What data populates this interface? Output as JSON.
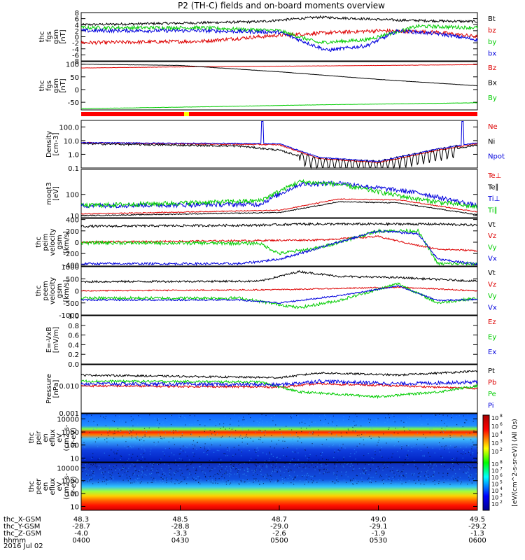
{
  "title": "P2 (TH-C) fields and on-board moments overview",
  "date_label": "2016 Jul 02",
  "colors": {
    "black": "#000000",
    "red": "#dd0000",
    "green": "#00cc00",
    "blue": "#0000dd",
    "yellow": "#ffff00"
  },
  "chart_data": {
    "type": "line",
    "x_range_hhmm": [
      "0400",
      "0600"
    ],
    "x_ticks": {
      "rows": [
        {
          "label": "thc_X-GSM",
          "values": [
            "48.3",
            "48.5",
            "48.7",
            "49.0",
            "49.5"
          ]
        },
        {
          "label": "thc_Y-GSM",
          "values": [
            "-28.7",
            "-28.8",
            "-29.0",
            "-29.1",
            "-29.2"
          ]
        },
        {
          "label": "thc_Z-GSM",
          "values": [
            "-4.0",
            "-3.3",
            "-2.6",
            "-1.9",
            "-1.3"
          ]
        },
        {
          "label": "hhmm",
          "values": [
            "0400",
            "0430",
            "0500",
            "0530",
            "0600"
          ]
        }
      ]
    },
    "panels": [
      {
        "id": "fgs_gsm",
        "ylabel": [
          "thc",
          "fgs",
          "gsm",
          "[nT]"
        ],
        "yticks": [
          "8",
          "6",
          "4",
          "2",
          "0",
          "-2",
          "-4",
          "-6",
          "-8"
        ],
        "ylim": [
          -8,
          8
        ],
        "legend": [
          {
            "name": "Bt",
            "color": "black"
          },
          {
            "name": "bz",
            "color": "red"
          },
          {
            "name": "by",
            "color": "green"
          },
          {
            "name": "bx",
            "color": "blue"
          }
        ]
      },
      {
        "id": "fgs_gse",
        "ylabel": [
          "thc",
          "fgs",
          "gsm",
          "[nT]"
        ],
        "yticks": [
          "100",
          "50",
          "0",
          "-50"
        ],
        "ylim": [
          -80,
          110
        ],
        "legend": [
          {
            "name": "Bz",
            "color": "red"
          },
          {
            "name": "Bx",
            "color": "black"
          },
          {
            "name": "By",
            "color": "green"
          }
        ]
      },
      {
        "id": "density",
        "ylabel": [
          "Density",
          "[cm-3]"
        ],
        "yticks": [
          "100.0",
          "10.0",
          "1.0",
          "0.1"
        ],
        "ylim": [
          0.1,
          300
        ],
        "scale": "log",
        "legend": [
          {
            "name": "Ne",
            "color": "red"
          },
          {
            "name": "Ni",
            "color": "black"
          },
          {
            "name": "Npot",
            "color": "blue"
          }
        ]
      },
      {
        "id": "temperature",
        "ylabel": [
          "moqt3",
          "[eV]"
        ],
        "yticks": [
          "100",
          "10"
        ],
        "ylim": [
          8,
          1500
        ],
        "scale": "log",
        "legend": [
          {
            "name": "Te⊥",
            "color": "red"
          },
          {
            "name": "Te∥",
            "color": "black"
          },
          {
            "name": "Ti⊥",
            "color": "blue"
          },
          {
            "name": "Ti∥",
            "color": "green"
          }
        ]
      },
      {
        "id": "ion_velocity",
        "ylabel": [
          "thc",
          "peim",
          "velocity",
          "gsm",
          "[km/s]"
        ],
        "yticks": [
          "400",
          "200",
          "0",
          "-200",
          "-400"
        ],
        "ylim": [
          -420,
          420
        ],
        "legend": [
          {
            "name": "Vt",
            "color": "black"
          },
          {
            "name": "Vz",
            "color": "red"
          },
          {
            "name": "Vy",
            "color": "green"
          },
          {
            "name": "Vx",
            "color": "blue"
          }
        ]
      },
      {
        "id": "electron_velocity",
        "ylabel": [
          "thc",
          "peem",
          "velocity",
          "gsm",
          "[km/s]"
        ],
        "yticks": [
          "1000",
          "500",
          "0",
          "-500",
          "-1000"
        ],
        "ylim": [
          -1000,
          1000
        ],
        "legend": [
          {
            "name": "Vt",
            "color": "black"
          },
          {
            "name": "Vz",
            "color": "red"
          },
          {
            "name": "Vy",
            "color": "green"
          },
          {
            "name": "Vx",
            "color": "blue"
          }
        ]
      },
      {
        "id": "efield",
        "ylabel": [
          "E=-VxB",
          "[mV/m]"
        ],
        "yticks": [
          "1.0",
          "0.8",
          "0.6",
          "0.4",
          "0.2",
          "0.0"
        ],
        "ylim": [
          0,
          1
        ],
        "legend": [
          {
            "name": "Ez",
            "color": "red"
          },
          {
            "name": "Ey",
            "color": "green"
          },
          {
            "name": "Ex",
            "color": "blue"
          }
        ]
      },
      {
        "id": "pressure",
        "ylabel": [
          "Pressure",
          "[nPa]"
        ],
        "yticks": [
          "0.010",
          "0.001"
        ],
        "ylim": [
          0.001,
          0.06
        ],
        "scale": "log",
        "legend": [
          {
            "name": "Pt",
            "color": "black"
          },
          {
            "name": "Pb",
            "color": "red"
          },
          {
            "name": "Pe",
            "color": "green"
          },
          {
            "name": "Pi",
            "color": "blue"
          }
        ]
      },
      {
        "id": "ion_spectrogram",
        "type": "heatmap",
        "ylabel": [
          "thc",
          "peir",
          "en",
          "eflux",
          "eV",
          "(cm2-s-",
          "sr-eV)"
        ],
        "yticks": [
          "10000",
          "1000",
          "100",
          "10"
        ],
        "ylim": [
          5,
          25000
        ],
        "scale": "log"
      },
      {
        "id": "electron_spectrogram",
        "type": "heatmap",
        "ylabel": [
          "thc",
          "peer",
          "en",
          "eflux",
          "eV",
          "(cm2-s-",
          "sr-eV)"
        ],
        "yticks": [
          "10000",
          "1000",
          "100",
          "10"
        ],
        "ylim": [
          5,
          25000
        ],
        "scale": "log"
      }
    ],
    "colorbar": {
      "label": "[eV/(cm^2-s-sr-eV)] (All Qs)",
      "ticks_upper": [
        "10",
        "10",
        "10",
        "10",
        "10"
      ],
      "exps_upper": [
        "8",
        "6",
        "4",
        "3",
        "2"
      ],
      "ticks_lower": [
        "10",
        "10",
        "10",
        "10",
        "10",
        "10",
        "10"
      ],
      "exps_lower": [
        "8",
        "7",
        "6",
        "5",
        "4",
        "3",
        "2"
      ]
    }
  }
}
